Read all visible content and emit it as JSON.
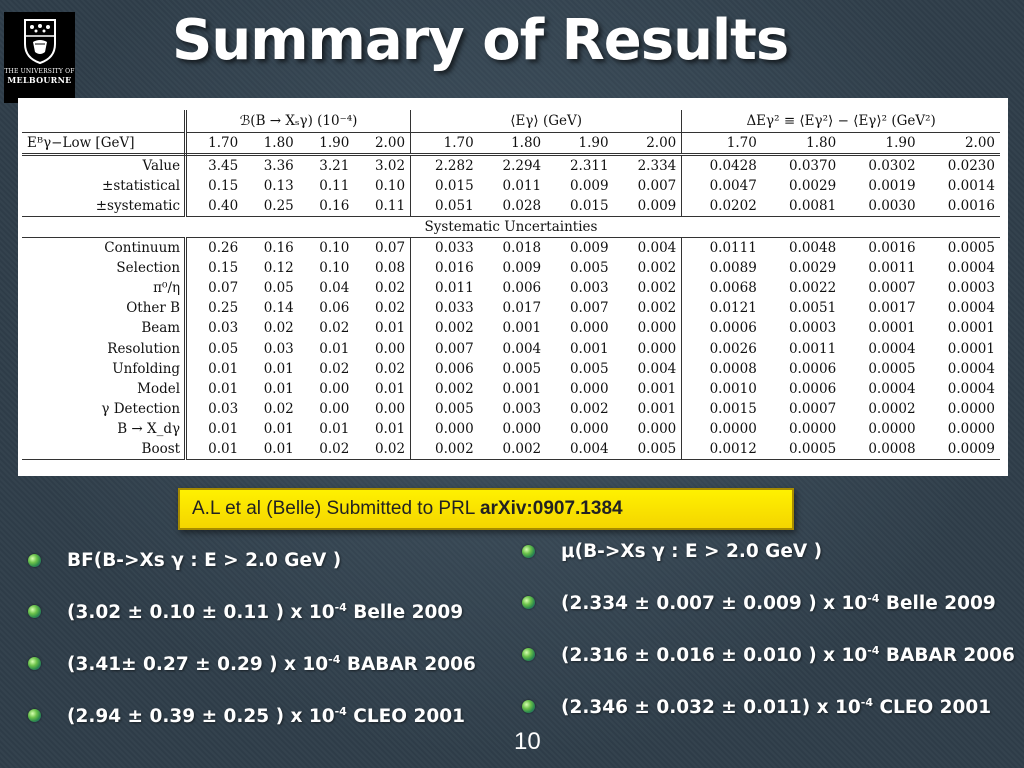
{
  "logo": {
    "line1": "THE UNIVERSITY OF",
    "line2": "MELBOURNE"
  },
  "title": "Summary of Results",
  "table": {
    "group_headers": [
      "ℬ(B → Xₛγ) (10⁻⁴)",
      "⟨Eγ⟩ (GeV)",
      "ΔEγ² ≡ ⟨Eγ²⟩ − ⟨Eγ⟩² (GeV²)"
    ],
    "cut_label": "Eᴮγ−Low [GeV]",
    "cuts": [
      "1.70",
      "1.80",
      "1.90",
      "2.00"
    ],
    "main_rows": [
      {
        "label": "Value",
        "values": [
          "3.45",
          "3.36",
          "3.21",
          "3.02",
          "2.282",
          "2.294",
          "2.311",
          "2.334",
          "0.0428",
          "0.0370",
          "0.0302",
          "0.0230"
        ]
      },
      {
        "label": "±statistical",
        "values": [
          "0.15",
          "0.13",
          "0.11",
          "0.10",
          "0.015",
          "0.011",
          "0.009",
          "0.007",
          "0.0047",
          "0.0029",
          "0.0019",
          "0.0014"
        ]
      },
      {
        "label": "±systematic",
        "values": [
          "0.40",
          "0.25",
          "0.16",
          "0.11",
          "0.051",
          "0.028",
          "0.015",
          "0.009",
          "0.0202",
          "0.0081",
          "0.0030",
          "0.0016"
        ]
      }
    ],
    "sys_header": "Systematic Uncertainties",
    "sys_rows": [
      {
        "label": "Continuum",
        "values": [
          "0.26",
          "0.16",
          "0.10",
          "0.07",
          "0.033",
          "0.018",
          "0.009",
          "0.004",
          "0.0111",
          "0.0048",
          "0.0016",
          "0.0005"
        ]
      },
      {
        "label": "Selection",
        "values": [
          "0.15",
          "0.12",
          "0.10",
          "0.08",
          "0.016",
          "0.009",
          "0.005",
          "0.002",
          "0.0089",
          "0.0029",
          "0.0011",
          "0.0004"
        ]
      },
      {
        "label": "π⁰/η",
        "values": [
          "0.07",
          "0.05",
          "0.04",
          "0.02",
          "0.011",
          "0.006",
          "0.003",
          "0.002",
          "0.0068",
          "0.0022",
          "0.0007",
          "0.0003"
        ]
      },
      {
        "label": "Other B",
        "values": [
          "0.25",
          "0.14",
          "0.06",
          "0.02",
          "0.033",
          "0.017",
          "0.007",
          "0.002",
          "0.0121",
          "0.0051",
          "0.0017",
          "0.0004"
        ]
      },
      {
        "label": "Beam",
        "values": [
          "0.03",
          "0.02",
          "0.02",
          "0.01",
          "0.002",
          "0.001",
          "0.000",
          "0.000",
          "0.0006",
          "0.0003",
          "0.0001",
          "0.0001"
        ]
      },
      {
        "label": "Resolution",
        "values": [
          "0.05",
          "0.03",
          "0.01",
          "0.00",
          "0.007",
          "0.004",
          "0.001",
          "0.000",
          "0.0026",
          "0.0011",
          "0.0004",
          "0.0001"
        ]
      },
      {
        "label": "Unfolding",
        "values": [
          "0.01",
          "0.01",
          "0.02",
          "0.02",
          "0.006",
          "0.005",
          "0.005",
          "0.004",
          "0.0008",
          "0.0006",
          "0.0005",
          "0.0004"
        ]
      },
      {
        "label": "Model",
        "values": [
          "0.01",
          "0.01",
          "0.00",
          "0.01",
          "0.002",
          "0.001",
          "0.000",
          "0.001",
          "0.0010",
          "0.0006",
          "0.0004",
          "0.0004"
        ]
      },
      {
        "label": "γ Detection",
        "values": [
          "0.03",
          "0.02",
          "0.00",
          "0.00",
          "0.005",
          "0.003",
          "0.002",
          "0.001",
          "0.0015",
          "0.0007",
          "0.0002",
          "0.0000"
        ]
      },
      {
        "label": "B → X_dγ",
        "values": [
          "0.01",
          "0.01",
          "0.01",
          "0.01",
          "0.000",
          "0.000",
          "0.000",
          "0.000",
          "0.0000",
          "0.0000",
          "0.0000",
          "0.0000"
        ]
      },
      {
        "label": "Boost",
        "values": [
          "0.01",
          "0.01",
          "0.02",
          "0.02",
          "0.002",
          "0.002",
          "0.004",
          "0.005",
          "0.0012",
          "0.0005",
          "0.0008",
          "0.0009"
        ]
      }
    ]
  },
  "citation": {
    "text": "A.L et al (Belle) Submitted to PRL ",
    "ref": "arXiv:0907.1384"
  },
  "left_bullets": [
    {
      "text": "BF(B->Xs γ : E > 2.0 GeV )"
    },
    {
      "pre": "(3.02 ± 0.10 ± 0.11 ) x 10",
      "exp": "-4",
      "post": " Belle 2009"
    },
    {
      "pre": "(3.41± 0.27 ± 0.29 ) x 10",
      "exp": "-4",
      "post": " BABAR 2006"
    },
    {
      "pre": "(2.94 ± 0.39 ± 0.25 ) x 10",
      "exp": "-4",
      "post": " CLEO 2001"
    }
  ],
  "right_bullets": [
    {
      "text": "μ(B->Xs γ : E > 2.0 GeV )"
    },
    {
      "pre": "(2.334 ± 0.007 ± 0.009 ) x 10",
      "exp": "-4",
      "post": " Belle 2009"
    },
    {
      "pre": "(2.316 ± 0.016 ± 0.010 ) x 10",
      "exp": "-4",
      "post": " BABAR 2006"
    },
    {
      "pre": "(2.346 ± 0.032 ± 0.011) x 10",
      "exp": "-4",
      "post": " CLEO 2001"
    }
  ],
  "page_number": "10",
  "colors": {
    "background": "#2f3e4a",
    "citation_bg": "#fff100",
    "bullet": "#6cc24a"
  }
}
